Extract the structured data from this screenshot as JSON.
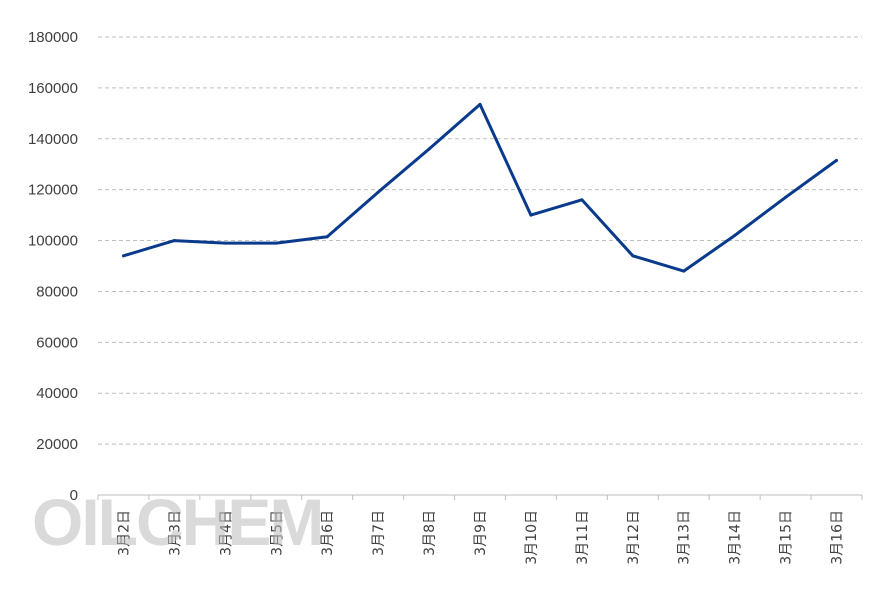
{
  "watermark": "OILCHEM",
  "chart_data": {
    "type": "line",
    "title": "",
    "xlabel": "",
    "ylabel": "",
    "ylim": [
      0,
      180000
    ],
    "yticks": [
      0,
      20000,
      40000,
      60000,
      80000,
      100000,
      120000,
      140000,
      160000,
      180000
    ],
    "grid": true,
    "categories": [
      "3月2日",
      "3月3日",
      "3月4日",
      "3月5日",
      "3月6日",
      "3月7日",
      "3月8日",
      "3月9日",
      "3月10日",
      "3月11日",
      "3月12日",
      "3月13日",
      "3月14日",
      "3月15日",
      "3月16日"
    ],
    "series": [
      {
        "color": "#0a3a8c",
        "values": [
          94000,
          100000,
          99000,
          99000,
          101500,
          119000,
          136000,
          153500,
          110000,
          116000,
          94000,
          88000,
          102000,
          117000,
          131500
        ]
      }
    ]
  }
}
